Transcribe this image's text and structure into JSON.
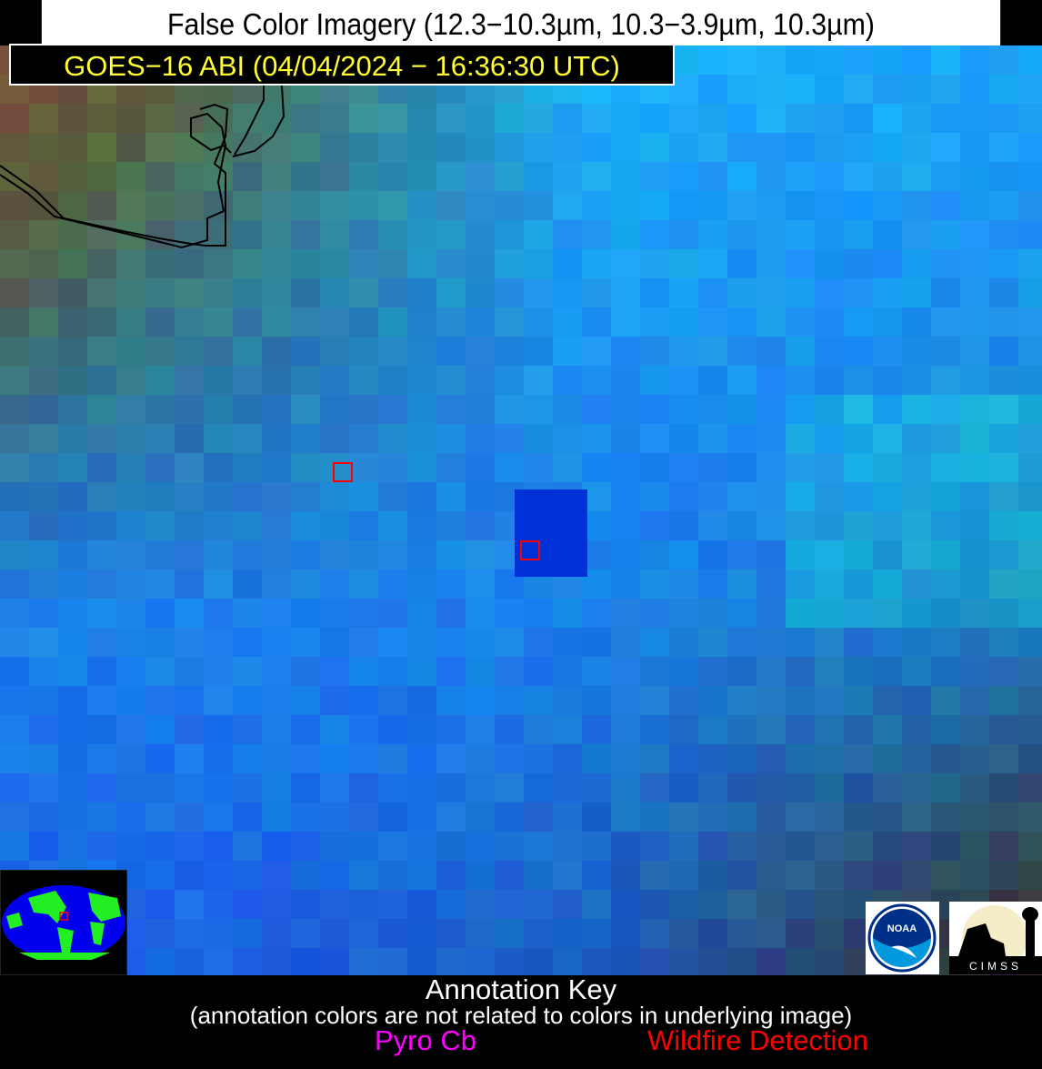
{
  "title": "False Color Imagery (12.3−10.3µm, 10.3−3.9µm, 10.3µm)",
  "subtitle": "GOES−16 ABI (04/04/2024 − 16:36:30 UTC)",
  "subtitle_color": "#ffff33",
  "annotation_key": {
    "title": "Annotation Key",
    "note": "(annotation colors are not related to colors in underlying image)",
    "items": [
      {
        "label": "Pyro Cb",
        "color": "#ff00ff"
      },
      {
        "label": "Wildfire Detection",
        "color": "#ff0000"
      }
    ]
  },
  "wildfire_detections": 2,
  "logos": {
    "noaa": "NOAA",
    "cimss": "CIMSS"
  },
  "icons": [
    "globe-locator-icon",
    "noaa-logo-icon",
    "cimss-logo-icon"
  ]
}
